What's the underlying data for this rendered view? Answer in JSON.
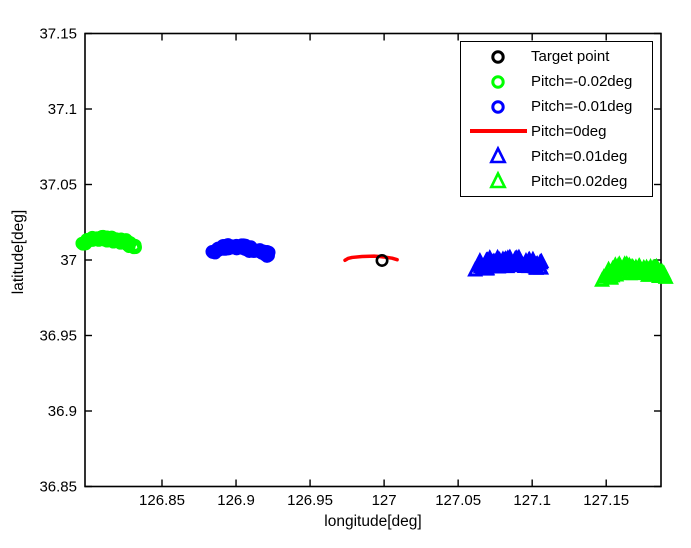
{
  "chart_data": {
    "type": "scatter",
    "title": "",
    "xlabel": "longitude[deg]",
    "ylabel": "latitude[deg]",
    "xlim": [
      126.798,
      127.187
    ],
    "ylim": [
      36.85,
      37.15
    ],
    "grid": false,
    "legend_position": "top-right",
    "x_ticks": {
      "values": [
        126.85,
        126.9,
        126.95,
        127,
        127.05,
        127.1,
        127.15
      ],
      "labels": [
        "126.85",
        "126.9",
        "126.95",
        "127",
        "127.05",
        "127.1",
        "127.15"
      ]
    },
    "y_ticks": {
      "values": [
        36.85,
        36.9,
        36.95,
        37,
        37.05,
        37.1,
        37.15
      ],
      "labels": [
        "36.85",
        "36.9",
        "36.95",
        "37",
        "37.05",
        "37.1",
        "37.15"
      ]
    },
    "axis_color": "#000000",
    "series": [
      {
        "name": "Target point",
        "type": "point",
        "marker": "circle",
        "color": "#000000",
        "points": [
          [
            126.9986,
            36.9997
          ]
        ]
      },
      {
        "name": "Pitch=-0.02deg",
        "type": "cluster",
        "marker": "circle",
        "color": "#00ff00",
        "count": 55,
        "centerline": [
          [
            126.7953,
            37.0106
          ],
          [
            126.8,
            37.0127
          ],
          [
            126.8054,
            37.0137
          ],
          [
            126.8122,
            37.014
          ],
          [
            126.8189,
            37.0133
          ],
          [
            126.8243,
            37.0119
          ],
          [
            126.8291,
            37.01
          ],
          [
            126.8311,
            37.009
          ]
        ]
      },
      {
        "name": "Pitch=-0.01deg",
        "type": "cluster",
        "marker": "circle",
        "color": "#0000ff",
        "count": 55,
        "centerline": [
          [
            126.8838,
            37.005
          ],
          [
            126.8892,
            37.0076
          ],
          [
            126.8959,
            37.0086
          ],
          [
            126.9041,
            37.0086
          ],
          [
            126.9108,
            37.0073
          ],
          [
            126.9176,
            37.0053
          ],
          [
            126.9223,
            37.003
          ]
        ]
      },
      {
        "name": "Pitch=0deg",
        "type": "line",
        "marker": "line",
        "color": "#ff0000",
        "points": [
          [
            126.9736,
            36.9998
          ],
          [
            126.9756,
            37.001
          ],
          [
            126.9784,
            37.0017
          ],
          [
            126.9851,
            37.0023
          ],
          [
            126.9932,
            37.0026
          ],
          [
            127.0,
            37.002
          ],
          [
            127.0054,
            37.0012
          ],
          [
            127.0088,
            37.0002
          ]
        ]
      },
      {
        "name": "Pitch=0.01deg",
        "type": "cluster",
        "marker": "triangle",
        "color": "#0000ff",
        "count": 80,
        "centerline": [
          [
            127.0635,
            36.995
          ],
          [
            127.0716,
            36.9977
          ],
          [
            127.0818,
            36.9987
          ],
          [
            127.0919,
            36.998
          ],
          [
            127.102,
            36.9967
          ],
          [
            127.1054,
            36.9957
          ]
        ]
      },
      {
        "name": "Pitch=0.02deg",
        "type": "cluster",
        "marker": "triangle",
        "color": "#00ff00",
        "count": 80,
        "centerline": [
          [
            127.15,
            36.9891
          ],
          [
            127.1561,
            36.993
          ],
          [
            127.1642,
            36.9944
          ],
          [
            127.173,
            36.993
          ],
          [
            127.1811,
            36.9923
          ],
          [
            127.1892,
            36.9907
          ]
        ]
      }
    ]
  }
}
